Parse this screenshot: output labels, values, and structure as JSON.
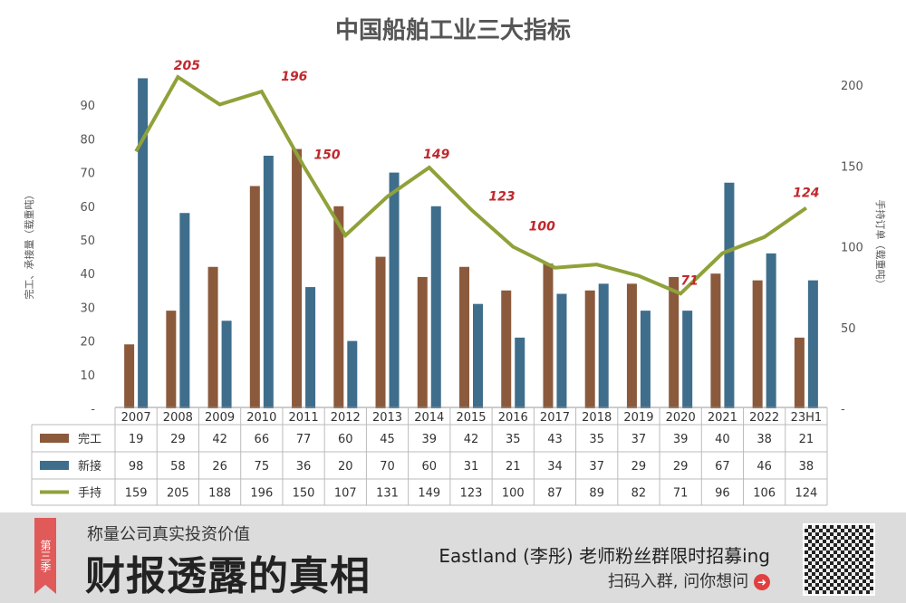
{
  "chart_data": {
    "type": "bar+line",
    "title": "中国船舶工业三大指标",
    "ylabel_left": "完工、承接量（载重吨）",
    "ylabel_right": "手持订单（载重吨）",
    "categories": [
      "2007",
      "2008",
      "2009",
      "2010",
      "2011",
      "2012",
      "2013",
      "2014",
      "2015",
      "2016",
      "2017",
      "2018",
      "2019",
      "2020",
      "2021",
      "2022",
      "23H1"
    ],
    "left_ticks": [
      "-",
      "10",
      "20",
      "30",
      "40",
      "50",
      "60",
      "70",
      "80",
      "90"
    ],
    "right_ticks": [
      "-",
      "50",
      "100",
      "150",
      "200"
    ],
    "left_ylim": [
      0,
      100
    ],
    "right_ylim": [
      0,
      200
    ],
    "series": [
      {
        "name": "完工",
        "type": "bar",
        "axis": "left",
        "color": "#8b5a3c",
        "values": [
          19,
          29,
          42,
          66,
          77,
          60,
          45,
          39,
          42,
          35,
          43,
          35,
          37,
          39,
          40,
          38,
          21
        ]
      },
      {
        "name": "新接",
        "type": "bar",
        "axis": "left",
        "color": "#3f6e8c",
        "values": [
          98,
          58,
          26,
          75,
          36,
          20,
          70,
          60,
          31,
          21,
          34,
          37,
          29,
          29,
          67,
          46,
          38
        ]
      },
      {
        "name": "手持",
        "type": "line",
        "axis": "right",
        "color": "#8fa23a",
        "values": [
          159,
          205,
          188,
          196,
          150,
          107,
          131,
          149,
          123,
          100,
          87,
          89,
          82,
          71,
          96,
          106,
          124
        ]
      }
    ],
    "annotations": [
      "205",
      "196",
      "150",
      "149",
      "123",
      "100",
      "71",
      "124"
    ],
    "annotation_color": "#c0282d",
    "table": true
  },
  "banner": {
    "ribbon": "第三季",
    "subtitle": "称量公司真实投资价值",
    "title": "财报透露的真相",
    "promo": "Eastland (李彤) 老师粉丝群限时招募ing",
    "cta": "扫码入群, 问你想问",
    "cta_icon": "arrow-right-circle-icon"
  }
}
